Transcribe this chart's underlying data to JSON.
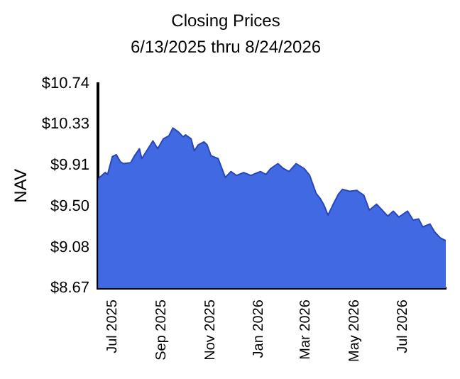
{
  "chart_data": {
    "type": "area",
    "title": "Closing Prices",
    "subtitle": "6/13/2025 thru 8/24/2026",
    "ylabel": "NAV",
    "x": [
      "2025-06-13",
      "2025-06-15",
      "2025-06-22",
      "2025-06-25",
      "2025-07-01",
      "2025-07-06",
      "2025-07-11",
      "2025-07-15",
      "2025-07-24",
      "2025-07-29",
      "2025-08-04",
      "2025-08-07",
      "2025-08-14",
      "2025-08-21",
      "2025-08-27",
      "2025-09-03",
      "2025-09-10",
      "2025-09-15",
      "2025-09-22",
      "2025-09-28",
      "2025-10-01",
      "2025-10-08",
      "2025-10-12",
      "2025-10-17",
      "2025-10-24",
      "2025-10-28",
      "2025-11-02",
      "2025-11-11",
      "2025-11-20",
      "2025-11-27",
      "2025-12-04",
      "2025-12-13",
      "2025-12-22",
      "2026-01-03",
      "2026-01-10",
      "2026-01-16",
      "2026-01-25",
      "2026-02-01",
      "2026-02-08",
      "2026-02-17",
      "2026-02-27",
      "2026-03-06",
      "2026-03-14",
      "2026-03-19",
      "2026-03-24",
      "2026-03-29",
      "2026-04-04",
      "2026-04-11",
      "2026-04-16",
      "2026-04-25",
      "2026-05-04",
      "2026-05-13",
      "2026-05-20",
      "2026-05-29",
      "2026-06-05",
      "2026-06-12",
      "2026-06-19",
      "2026-06-26",
      "2026-07-07",
      "2026-07-14",
      "2026-07-21",
      "2026-07-26",
      "2026-08-04",
      "2026-08-10",
      "2026-08-17",
      "2026-08-24"
    ],
    "series": [
      {
        "color": "#4169e1",
        "values": [
          9.76,
          9.79,
          9.84,
          9.82,
          10.0,
          10.02,
          9.95,
          9.93,
          9.94,
          10.01,
          10.08,
          9.98,
          10.07,
          10.16,
          10.08,
          10.18,
          10.21,
          10.29,
          10.25,
          10.2,
          10.22,
          10.18,
          10.06,
          10.12,
          10.15,
          10.12,
          10.01,
          9.98,
          9.79,
          9.85,
          9.81,
          9.84,
          9.81,
          9.85,
          9.82,
          9.88,
          9.93,
          9.88,
          9.85,
          9.93,
          9.88,
          9.81,
          9.63,
          9.58,
          9.51,
          9.41,
          9.51,
          9.62,
          9.67,
          9.65,
          9.66,
          9.61,
          9.46,
          9.52,
          9.46,
          9.4,
          9.45,
          9.39,
          9.45,
          9.36,
          9.37,
          9.29,
          9.32,
          9.24,
          9.18,
          9.15
        ]
      }
    ],
    "xlim": [
      "2025-06-13",
      "2026-08-24"
    ],
    "xticks": [
      {
        "value": "2025-07-01",
        "label": "Jul 2025"
      },
      {
        "value": "2025-09-01",
        "label": "Sep 2025"
      },
      {
        "value": "2025-11-01",
        "label": "Nov 2025"
      },
      {
        "value": "2026-01-01",
        "label": "Jan 2026"
      },
      {
        "value": "2026-03-01",
        "label": "Mar 2026"
      },
      {
        "value": "2026-05-01",
        "label": "May 2026"
      },
      {
        "value": "2026-07-01",
        "label": "Jul 2026"
      }
    ],
    "ylim": [
      8.67,
      10.74
    ],
    "yticks": [
      {
        "value": 8.67,
        "label": "$8.67"
      },
      {
        "value": 9.08,
        "label": "$9.08"
      },
      {
        "value": 9.5,
        "label": "$9.50"
      },
      {
        "value": 9.91,
        "label": "$9.91"
      },
      {
        "value": 10.33,
        "label": "$10.33"
      },
      {
        "value": 10.74,
        "label": "$10.74"
      }
    ],
    "grid": false,
    "legend": false
  }
}
